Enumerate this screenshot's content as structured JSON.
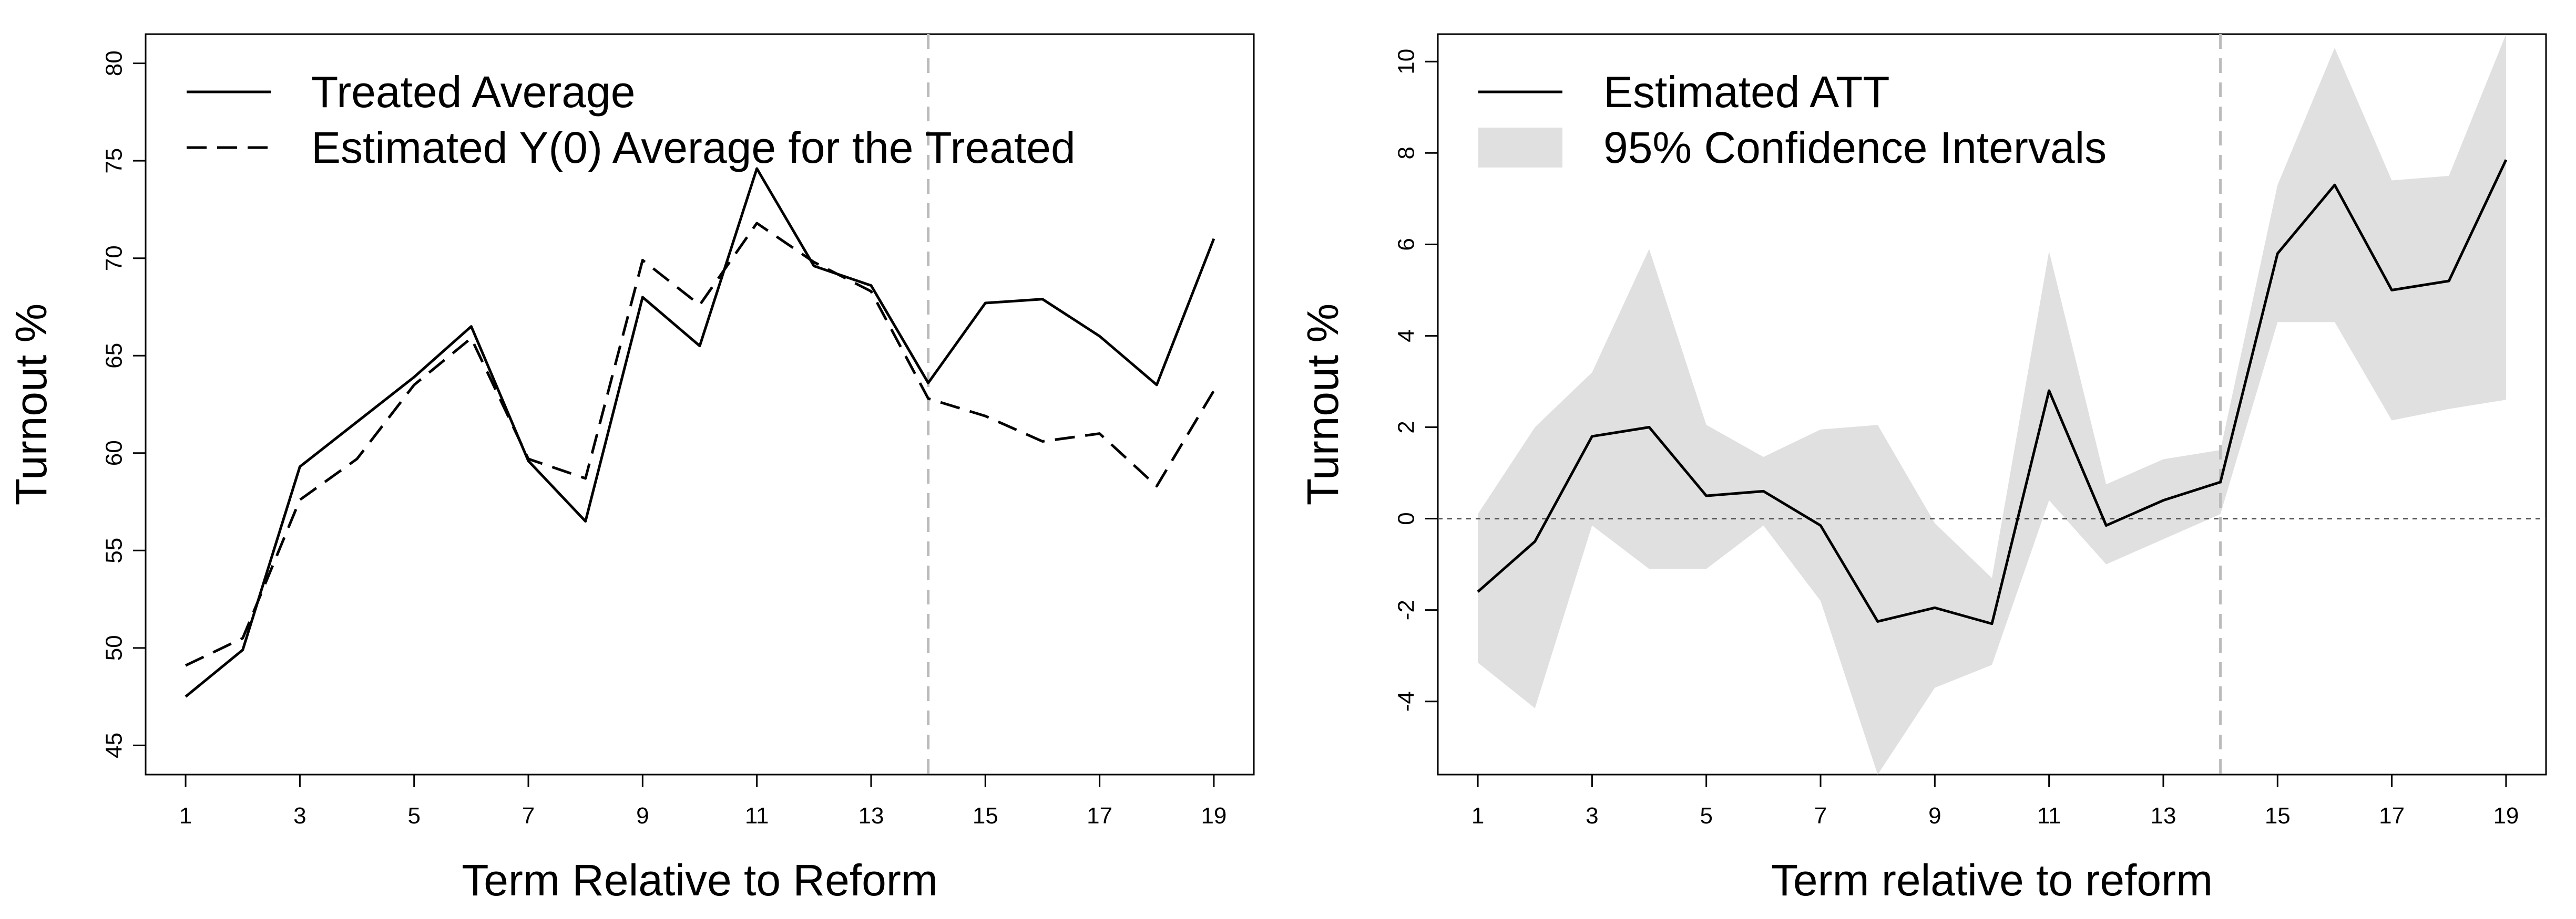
{
  "chart_data": [
    {
      "type": "line",
      "title": "",
      "xlabel": "Term Relative to Reform",
      "ylabel": "Turnout %",
      "xlim": [
        0.3,
        19.7
      ],
      "ylim": [
        43.5,
        81.5
      ],
      "x_ticks": [
        1,
        3,
        5,
        7,
        9,
        11,
        13,
        15,
        17,
        19
      ],
      "y_ticks": [
        45,
        50,
        55,
        60,
        65,
        70,
        75,
        80
      ],
      "x_tick_labels": [
        "1",
        "3",
        "5",
        "7",
        "9",
        "11",
        "13",
        "15",
        "17",
        "19"
      ],
      "y_tick_labels": [
        "45",
        "50",
        "55",
        "60",
        "65",
        "70",
        "75",
        "80"
      ],
      "reform_line_x": 14,
      "reform_line_color": "#bbbbbb",
      "legend_position": "top-left",
      "x": [
        1,
        2,
        3,
        4,
        5,
        6,
        7,
        8,
        9,
        10,
        11,
        12,
        13,
        14,
        15,
        16,
        17,
        18,
        19
      ],
      "series": [
        {
          "name": "Treated Average",
          "style": "solid",
          "color": "#000000",
          "values": [
            47.5,
            49.9,
            59.3,
            61.6,
            63.9,
            66.5,
            59.6,
            56.5,
            68.0,
            65.5,
            74.6,
            69.6,
            68.6,
            63.6,
            67.7,
            67.9,
            66.0,
            63.5,
            71.0
          ]
        },
        {
          "name": "Estimated Y(0) Average for the Treated",
          "style": "dashed",
          "color": "#000000",
          "values": [
            49.1,
            50.5,
            57.6,
            59.7,
            63.5,
            65.9,
            59.7,
            58.7,
            69.9,
            67.6,
            71.8,
            69.8,
            68.3,
            62.8,
            61.9,
            60.6,
            61.0,
            58.3,
            63.2
          ]
        }
      ]
    },
    {
      "type": "line",
      "title": "",
      "xlabel": "Term relative to reform",
      "ylabel": "Turnout %",
      "xlim": [
        0.3,
        19.7
      ],
      "ylim": [
        -5.6,
        10.6
      ],
      "x_ticks": [
        1,
        3,
        5,
        7,
        9,
        11,
        13,
        15,
        17,
        19
      ],
      "y_ticks": [
        -4,
        -2,
        0,
        2,
        4,
        6,
        8,
        10
      ],
      "x_tick_labels": [
        "1",
        "3",
        "5",
        "7",
        "9",
        "11",
        "13",
        "15",
        "17",
        "19"
      ],
      "y_tick_labels": [
        "-4",
        "-2",
        "0",
        "2",
        "4",
        "6",
        "8",
        "10"
      ],
      "reform_line_x": 14,
      "reform_line_color": "#bbbbbb",
      "zero_line_y": 0,
      "legend_position": "top-left",
      "x": [
        1,
        2,
        3,
        4,
        5,
        6,
        7,
        8,
        9,
        10,
        11,
        12,
        13,
        14,
        15,
        16,
        17,
        18,
        19
      ],
      "series": [
        {
          "name": "Estimated ATT",
          "style": "solid",
          "color": "#000000",
          "values": [
            -1.6,
            -0.5,
            1.8,
            2.0,
            0.5,
            0.6,
            -0.15,
            -2.25,
            -1.95,
            -2.3,
            2.8,
            -0.15,
            0.4,
            0.8,
            5.8,
            7.3,
            5.0,
            5.2,
            7.85
          ]
        }
      ],
      "band": {
        "name": "95% Confidence Intervals",
        "color": "#e0e0e0",
        "lower": [
          -3.15,
          -4.15,
          -0.15,
          -1.1,
          -1.1,
          -0.15,
          -1.8,
          -5.6,
          -3.7,
          -3.2,
          0.4,
          -1.0,
          -0.45,
          0.1,
          4.3,
          4.3,
          2.15,
          2.4,
          2.6
        ],
        "upper": [
          0.1,
          2.0,
          3.2,
          5.9,
          2.05,
          1.35,
          1.95,
          2.05,
          -0.1,
          -1.3,
          5.85,
          0.75,
          1.3,
          1.5,
          7.3,
          10.3,
          7.4,
          7.5,
          10.6
        ]
      }
    }
  ]
}
